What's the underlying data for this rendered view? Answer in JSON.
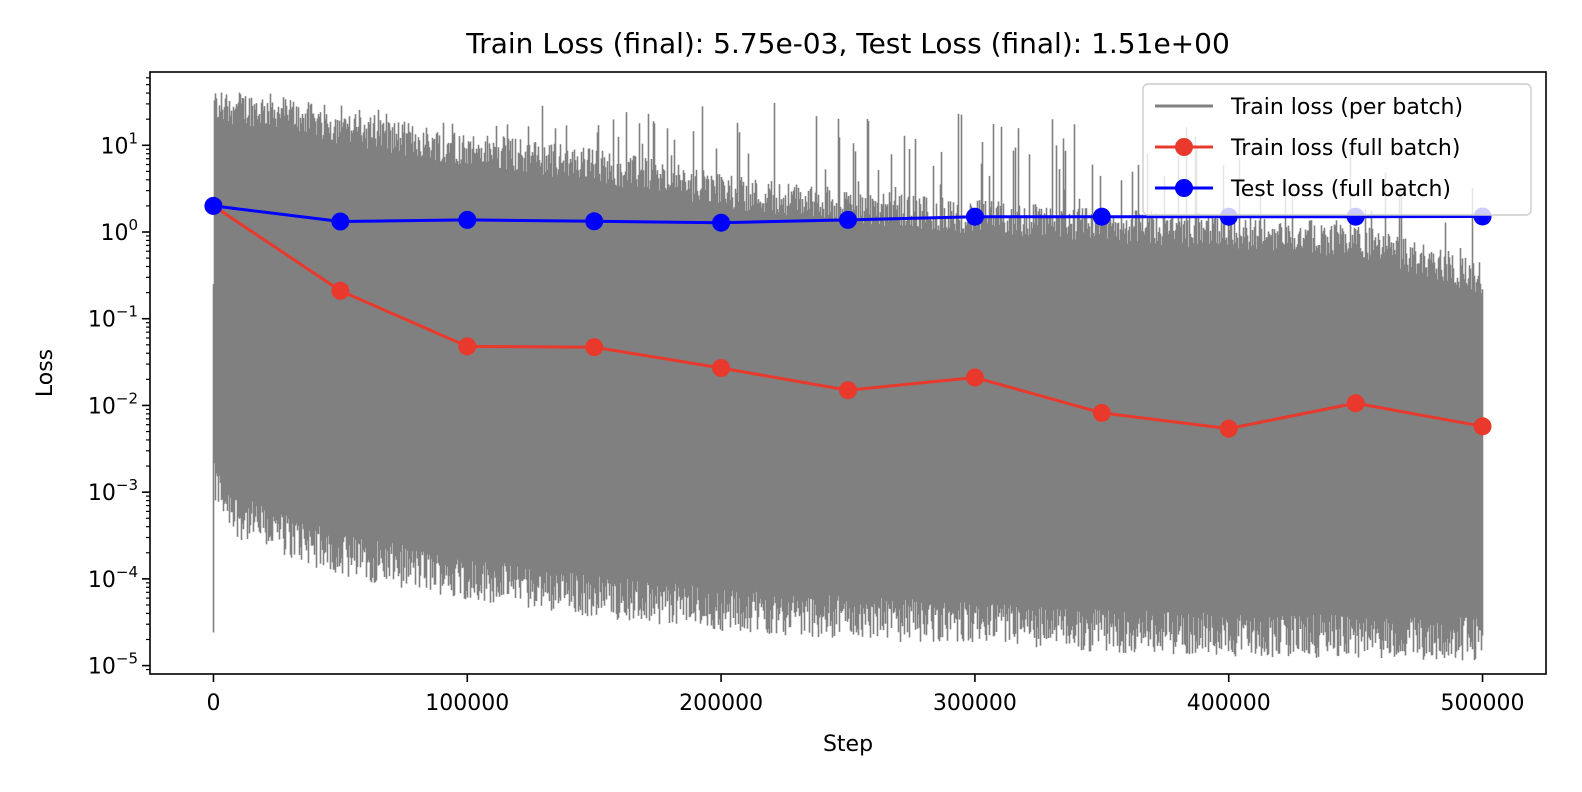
{
  "chart_data": {
    "type": "line",
    "title": "Train Loss (final): 5.75e-03, Test Loss (final): 1.51e+00",
    "xlabel": "Step",
    "ylabel": "Loss",
    "xscale": "linear",
    "yscale": "log",
    "xlim": [
      -25000,
      525000
    ],
    "ylim": [
      8e-06,
      70
    ],
    "x_ticks": [
      0,
      100000,
      200000,
      300000,
      400000,
      500000
    ],
    "x_tick_labels": [
      "0",
      "100000",
      "200000",
      "300000",
      "400000",
      "500000"
    ],
    "y_ticks": [
      1e-05,
      0.0001,
      0.001,
      0.01,
      0.1,
      1,
      10
    ],
    "y_tick_labels": [
      {
        "base": "10",
        "exp": "−5"
      },
      {
        "base": "10",
        "exp": "−4"
      },
      {
        "base": "10",
        "exp": "−3"
      },
      {
        "base": "10",
        "exp": "−2"
      },
      {
        "base": "10",
        "exp": "−1"
      },
      {
        "base": "10",
        "exp": "0"
      },
      {
        "base": "10",
        "exp": "1"
      }
    ],
    "grid": false,
    "legend_position": "top-right",
    "series": [
      {
        "name": "Train loss (per batch)",
        "color": "#808080",
        "marker": "none",
        "kind": "noisy-band",
        "x_range": [
          0,
          500000
        ],
        "lower_envelope": [
          [
            0,
            0.001
          ],
          [
            10000,
            0.0004
          ],
          [
            50000,
            0.00015
          ],
          [
            100000,
            8e-05
          ],
          [
            150000,
            5e-05
          ],
          [
            200000,
            3.5e-05
          ],
          [
            250000,
            2.8e-05
          ],
          [
            300000,
            2.4e-05
          ],
          [
            350000,
            2e-05
          ],
          [
            400000,
            1.8e-05
          ],
          [
            450000,
            1.7e-05
          ],
          [
            500000,
            1.6e-05
          ]
        ],
        "upper_envelope": [
          [
            0,
            28
          ],
          [
            25000,
            25
          ],
          [
            50000,
            16
          ],
          [
            100000,
            9
          ],
          [
            150000,
            6
          ],
          [
            200000,
            3
          ],
          [
            250000,
            2
          ],
          [
            300000,
            1.5
          ],
          [
            350000,
            1.2
          ],
          [
            400000,
            1.0
          ],
          [
            450000,
            0.8
          ],
          [
            500000,
            0.3
          ]
        ],
        "spike_max": [
          [
            0,
            30
          ],
          [
            150000,
            32
          ],
          [
            200000,
            34
          ],
          [
            300000,
            25
          ],
          [
            400000,
            18
          ],
          [
            500000,
            12
          ]
        ]
      },
      {
        "name": "Train loss (full batch)",
        "color": "#e8392c",
        "marker": "circle",
        "x": [
          0,
          50000,
          100000,
          150000,
          200000,
          250000,
          300000,
          350000,
          400000,
          450000,
          500000
        ],
        "y": [
          2.0,
          0.21,
          0.048,
          0.047,
          0.027,
          0.015,
          0.021,
          0.0082,
          0.0054,
          0.0106,
          0.00575
        ]
      },
      {
        "name": "Test loss (full batch)",
        "color": "#0000ff",
        "marker": "circle",
        "x": [
          0,
          50000,
          100000,
          150000,
          200000,
          250000,
          300000,
          350000,
          400000,
          450000,
          500000
        ],
        "y": [
          2.0,
          1.32,
          1.38,
          1.33,
          1.28,
          1.38,
          1.5,
          1.5,
          1.5,
          1.5,
          1.51
        ]
      }
    ]
  }
}
